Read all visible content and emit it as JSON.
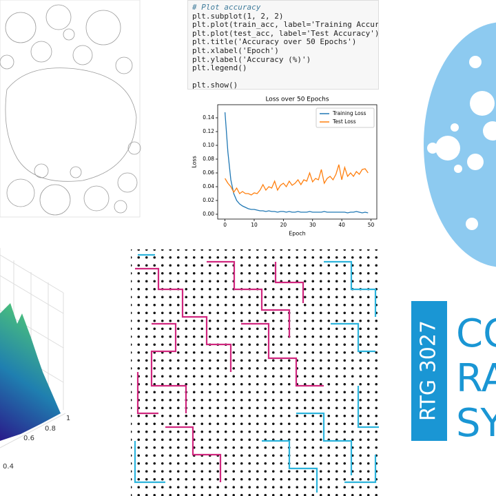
{
  "code": {
    "lines": [
      "# Plot accuracy",
      "plt.subplot(1, 2, 2)",
      "plt.plot(train_acc, label='Training Accuracy')",
      "plt.plot(test_acc, label='Test Accuracy')",
      "plt.title('Accuracy over 50 Epochs')",
      "plt.xlabel('Epoch')",
      "plt.ylabel('Accuracy (%)')",
      "plt.legend()",
      "plt.show()"
    ]
  },
  "chart_data": {
    "type": "line",
    "title": "Loss over 50 Epochs",
    "x_label": "Epoch",
    "y_label": "Loss",
    "x": [
      0,
      1,
      2,
      3,
      4,
      5,
      6,
      7,
      8,
      9,
      10,
      11,
      12,
      13,
      14,
      15,
      16,
      17,
      18,
      19,
      20,
      21,
      22,
      23,
      24,
      25,
      26,
      27,
      28,
      29,
      30,
      31,
      32,
      33,
      34,
      35,
      36,
      37,
      38,
      39,
      40,
      41,
      42,
      43,
      44,
      45,
      46,
      47,
      48,
      49
    ],
    "series": [
      {
        "name": "Training Loss",
        "color": "#1f77b4",
        "values": [
          0.148,
          0.09,
          0.05,
          0.03,
          0.02,
          0.015,
          0.012,
          0.01,
          0.008,
          0.007,
          0.007,
          0.006,
          0.005,
          0.005,
          0.004,
          0.005,
          0.004,
          0.004,
          0.003,
          0.004,
          0.004,
          0.003,
          0.004,
          0.003,
          0.003,
          0.004,
          0.003,
          0.003,
          0.003,
          0.004,
          0.003,
          0.003,
          0.003,
          0.003,
          0.004,
          0.003,
          0.003,
          0.003,
          0.003,
          0.003,
          0.003,
          0.003,
          0.002,
          0.003,
          0.003,
          0.004,
          0.003,
          0.002,
          0.003,
          0.002
        ]
      },
      {
        "name": "Test Loss",
        "color": "#ff7f0e",
        "values": [
          0.052,
          0.045,
          0.04,
          0.032,
          0.038,
          0.03,
          0.033,
          0.03,
          0.03,
          0.028,
          0.031,
          0.03,
          0.035,
          0.043,
          0.035,
          0.04,
          0.038,
          0.048,
          0.035,
          0.042,
          0.045,
          0.04,
          0.048,
          0.042,
          0.045,
          0.05,
          0.043,
          0.05,
          0.048,
          0.06,
          0.047,
          0.052,
          0.05,
          0.065,
          0.045,
          0.052,
          0.055,
          0.05,
          0.058,
          0.072,
          0.05,
          0.068,
          0.055,
          0.06,
          0.055,
          0.062,
          0.058,
          0.065,
          0.066,
          0.06
        ]
      }
    ],
    "xlim": [
      -2.5,
      52
    ],
    "xticks": [
      0,
      10,
      20,
      30,
      40,
      50
    ],
    "ylim": [
      -0.007,
      0.159
    ],
    "yticks": [
      {
        "value": 0,
        "label": "0.00"
      },
      {
        "value": 0.02,
        "label": "0.02"
      },
      {
        "value": 0.04,
        "label": "0.04"
      },
      {
        "value": 0.06,
        "label": "0.06"
      },
      {
        "value": 0.08,
        "label": "0.08"
      },
      {
        "value": 0.1,
        "label": "0.10"
      },
      {
        "value": 0.12,
        "label": "0.12"
      },
      {
        "value": 0.14,
        "label": "0.14"
      }
    ],
    "legend": "upper right"
  },
  "surface_plot": {
    "tick_labels": [
      0.4,
      0.6,
      0.8,
      1
    ]
  },
  "logo": {
    "badge": "RTG 3027",
    "words": [
      "CO",
      "RA",
      "SY"
    ]
  }
}
